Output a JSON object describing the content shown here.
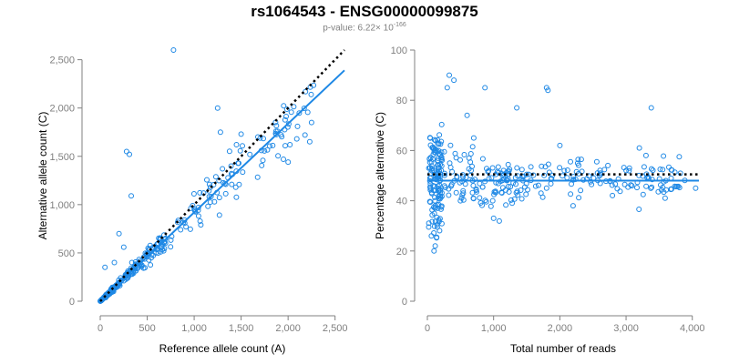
{
  "title": "rs1064543 - ENSG00000099875",
  "subtitle": {
    "prefix": "p-value: 6.22× 10",
    "exponent": "-166"
  },
  "colors": {
    "points": "#1E88E5",
    "fit": "#1E88E5",
    "reference": "#000000",
    "axis": "#808080"
  },
  "chart_data": [
    {
      "type": "scatter",
      "xlabel": "Reference allele count (A)",
      "ylabel": "Alternative allele count (C)",
      "xlim": [
        0,
        2600
      ],
      "ylim": [
        0,
        2600
      ],
      "x_ticks": [
        0,
        500,
        1000,
        1500,
        2000,
        2500
      ],
      "x_tick_labels": [
        "0",
        "500",
        "1,000",
        "1,500",
        "2,000",
        "2,500"
      ],
      "y_ticks": [
        0,
        500,
        1000,
        1500,
        2000,
        2500
      ],
      "y_tick_labels": [
        "0",
        "500",
        "1,000",
        "1,500",
        "2,000",
        "2,500"
      ],
      "fit_line": {
        "x": [
          0,
          2600
        ],
        "y": [
          0,
          2390
        ],
        "style": "solid"
      },
      "reference_line": {
        "x": [
          0,
          2600
        ],
        "y": [
          0,
          2600
        ],
        "style": "dotted"
      },
      "outliers": [
        {
          "x": 780,
          "y": 2600
        },
        {
          "x": 1250,
          "y": 2000
        },
        {
          "x": 280,
          "y": 1550
        },
        {
          "x": 310,
          "y": 1520
        },
        {
          "x": 330,
          "y": 1090
        },
        {
          "x": 1100,
          "y": 1120
        },
        {
          "x": 1280,
          "y": 1750
        },
        {
          "x": 1500,
          "y": 1730
        },
        {
          "x": 1450,
          "y": 1620
        },
        {
          "x": 2100,
          "y": 1810
        },
        {
          "x": 2250,
          "y": 1850
        },
        {
          "x": 2180,
          "y": 1720
        },
        {
          "x": 1870,
          "y": 1760
        },
        {
          "x": 1950,
          "y": 1470
        },
        {
          "x": 2000,
          "y": 1440
        },
        {
          "x": 2230,
          "y": 1650
        },
        {
          "x": 2020,
          "y": 1620
        },
        {
          "x": 150,
          "y": 400
        },
        {
          "x": 200,
          "y": 700
        },
        {
          "x": 250,
          "y": 560
        },
        {
          "x": 50,
          "y": 350
        }
      ],
      "cloud": {
        "n": 380,
        "x_range": [
          0,
          2300
        ],
        "slope": 0.92,
        "spread": 0.09
      }
    },
    {
      "type": "scatter",
      "xlabel": "Total number of reads",
      "ylabel": "Percentage alternative (C)",
      "xlim": [
        0,
        4100
      ],
      "ylim": [
        0,
        100
      ],
      "x_ticks": [
        0,
        1000,
        2000,
        3000,
        4000
      ],
      "x_tick_labels": [
        "0",
        "1,000",
        "2,000",
        "3,000",
        "4,000"
      ],
      "y_ticks": [
        0,
        20,
        40,
        60,
        80,
        100
      ],
      "y_tick_labels": [
        "0",
        "20",
        "40",
        "60",
        "80",
        "100"
      ],
      "fit_line": {
        "x": [
          0,
          4100
        ],
        "y": [
          48,
          48
        ],
        "style": "solid"
      },
      "reference_line": {
        "x": [
          0,
          4100
        ],
        "y": [
          50.5,
          50.5
        ],
        "style": "dotted"
      },
      "outliers": [
        {
          "x": 330,
          "y": 90
        },
        {
          "x": 400,
          "y": 88
        },
        {
          "x": 1800,
          "y": 85
        },
        {
          "x": 1820,
          "y": 84
        },
        {
          "x": 870,
          "y": 85
        },
        {
          "x": 3380,
          "y": 77
        },
        {
          "x": 1350,
          "y": 77
        },
        {
          "x": 300,
          "y": 85
        },
        {
          "x": 2000,
          "y": 62
        },
        {
          "x": 3200,
          "y": 61
        },
        {
          "x": 3300,
          "y": 58
        },
        {
          "x": 100,
          "y": 20
        },
        {
          "x": 60,
          "y": 26
        },
        {
          "x": 4050,
          "y": 45
        },
        {
          "x": 3600,
          "y": 48
        },
        {
          "x": 600,
          "y": 74
        },
        {
          "x": 700,
          "y": 65
        },
        {
          "x": 500,
          "y": 40
        },
        {
          "x": 2200,
          "y": 38
        },
        {
          "x": 1000,
          "y": 33
        }
      ],
      "cloud": {
        "n": 380,
        "x_range": [
          0,
          3900
        ],
        "center": 48
      }
    }
  ]
}
